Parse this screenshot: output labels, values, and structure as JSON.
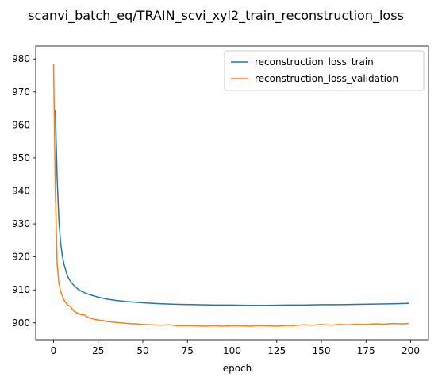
{
  "chart_data": {
    "type": "line",
    "title": "scanvi_batch_eq/TRAIN_scvi_xyl2_train_reconstruction_loss",
    "xlabel": "epoch",
    "ylabel": "",
    "xlim": [
      -10,
      210
    ],
    "ylim": [
      894.9,
      983.9
    ],
    "xticks": [
      0,
      25,
      50,
      75,
      100,
      125,
      150,
      175,
      200
    ],
    "yticks": [
      900,
      910,
      920,
      930,
      940,
      950,
      960,
      970,
      980
    ],
    "grid": false,
    "legend": "top-right",
    "series": [
      {
        "name": "reconstruction_loss_train",
        "color": "#1f77b4",
        "x": [
          1,
          2,
          3,
          4,
          5,
          6,
          7,
          8,
          9,
          10,
          12,
          14,
          16,
          18,
          20,
          25,
          30,
          35,
          40,
          50,
          60,
          70,
          80,
          90,
          100,
          110,
          120,
          130,
          140,
          150,
          160,
          170,
          180,
          190,
          199
        ],
        "y": [
          964.5,
          944,
          931,
          924,
          920,
          917.5,
          915.5,
          914,
          913,
          912.2,
          911,
          910.1,
          909.5,
          909,
          908.6,
          907.8,
          907.2,
          906.8,
          906.5,
          906.1,
          905.8,
          905.6,
          905.5,
          905.4,
          905.4,
          905.3,
          905.3,
          905.4,
          905.4,
          905.5,
          905.5,
          905.6,
          905.7,
          905.8,
          905.9
        ]
      },
      {
        "name": "reconstruction_loss_validation",
        "color": "#ff7f0e",
        "x": [
          0,
          1,
          2,
          3,
          4,
          5,
          6,
          7,
          8,
          9,
          10,
          11,
          12,
          13,
          14,
          15,
          16,
          17,
          18,
          19,
          20,
          22,
          24,
          26,
          28,
          30,
          32,
          34,
          36,
          38,
          40,
          42,
          44,
          46,
          50,
          55,
          60,
          65,
          70,
          75,
          80,
          85,
          90,
          95,
          100,
          105,
          110,
          115,
          120,
          125,
          130,
          135,
          140,
          145,
          150,
          155,
          160,
          165,
          170,
          175,
          180,
          185,
          190,
          195,
          199
        ],
        "y": [
          978.5,
          940,
          918,
          912,
          909.5,
          908,
          906.8,
          906,
          905.3,
          905.2,
          904.6,
          903.8,
          903.4,
          903.1,
          902.9,
          902.6,
          902.4,
          902.5,
          902.1,
          901.8,
          901.6,
          901.2,
          901,
          900.8,
          900.7,
          900.4,
          900.3,
          900.2,
          900.1,
          900,
          899.9,
          899.8,
          899.7,
          899.7,
          899.5,
          899.4,
          899.3,
          899.4,
          899.1,
          899.2,
          899.1,
          899,
          899.2,
          899,
          899.1,
          899.1,
          899,
          899.2,
          899.1,
          899,
          899.2,
          899.2,
          899.4,
          899.3,
          899.5,
          899.3,
          899.5,
          899.4,
          899.6,
          899.5,
          899.7,
          899.6,
          899.8,
          899.7,
          899.8
        ]
      }
    ]
  }
}
